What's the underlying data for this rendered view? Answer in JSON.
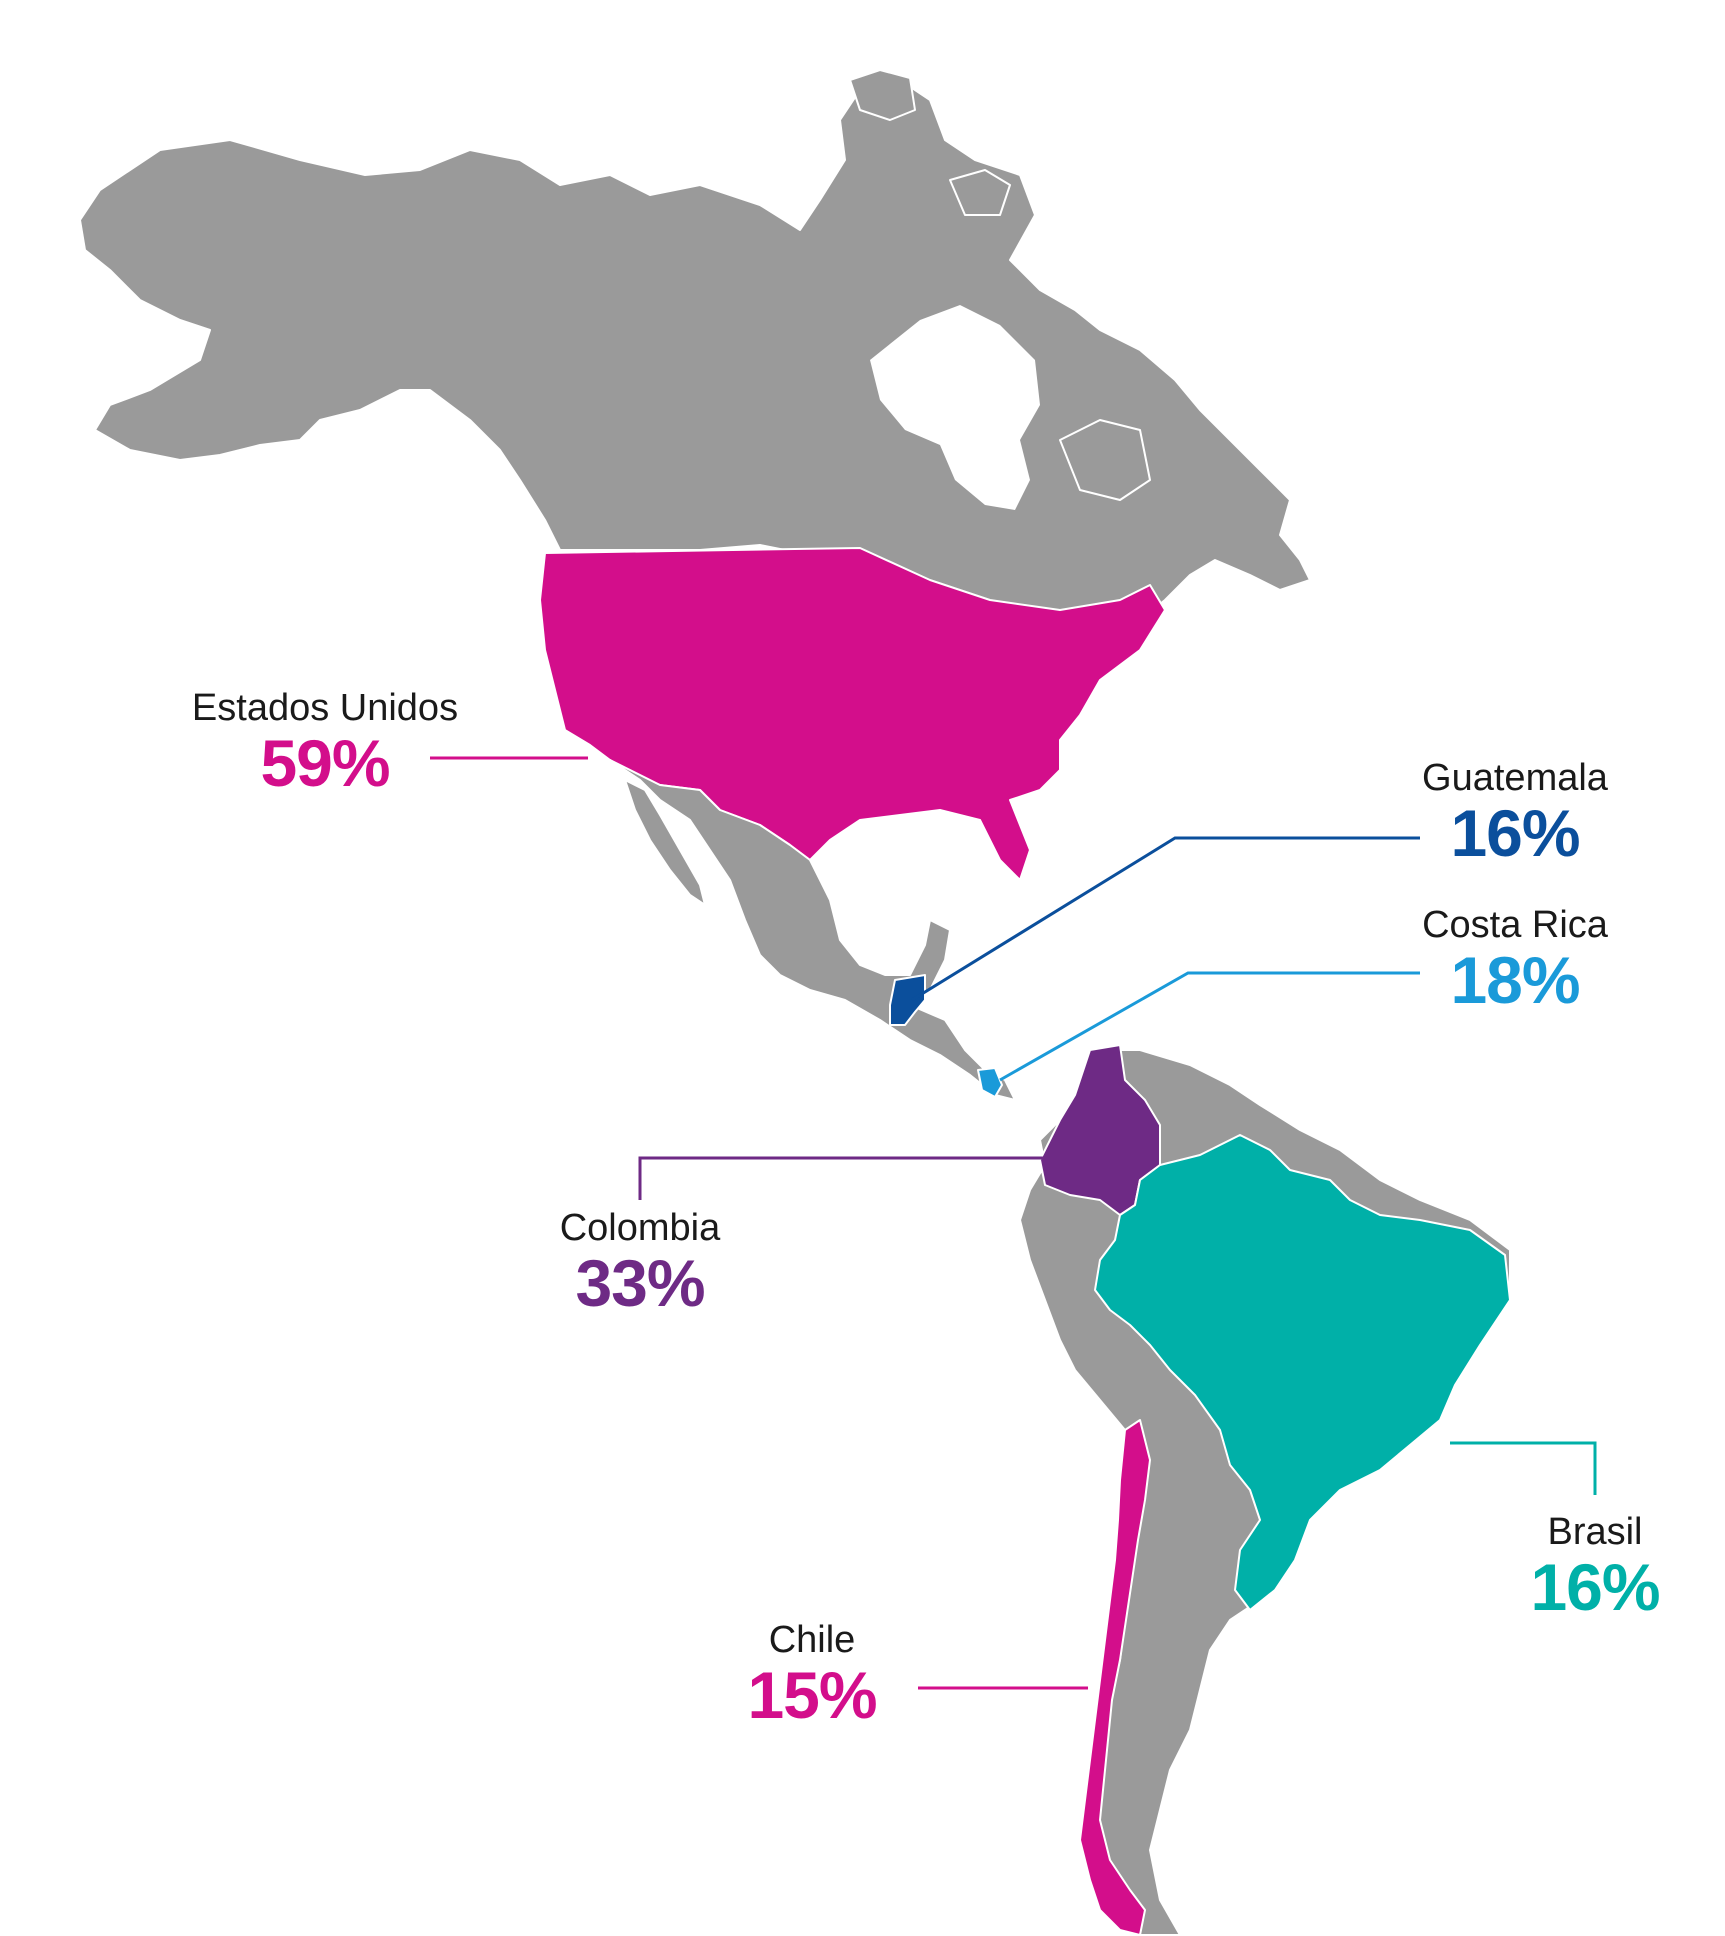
{
  "colors": {
    "land": "#9a9a9a",
    "magenta": "#d30e8b",
    "dark_blue": "#0b4f9c",
    "light_blue": "#1a9ad9",
    "purple": "#6e2a85",
    "teal": "#00b0a8"
  },
  "countries": [
    {
      "key": "usa",
      "name": "Estados Unidos",
      "value": "59%",
      "color": "#d30e8b"
    },
    {
      "key": "guatemala",
      "name": "Guatemala",
      "value": "16%",
      "color": "#0b4f9c"
    },
    {
      "key": "costa_rica",
      "name": "Costa Rica",
      "value": "18%",
      "color": "#1a9ad9"
    },
    {
      "key": "colombia",
      "name": "Colombia",
      "value": "33%",
      "color": "#6e2a85"
    },
    {
      "key": "brasil",
      "name": "Brasil",
      "value": "16%",
      "color": "#00b0a8"
    },
    {
      "key": "chile",
      "name": "Chile",
      "value": "15%",
      "color": "#d30e8b"
    }
  ]
}
